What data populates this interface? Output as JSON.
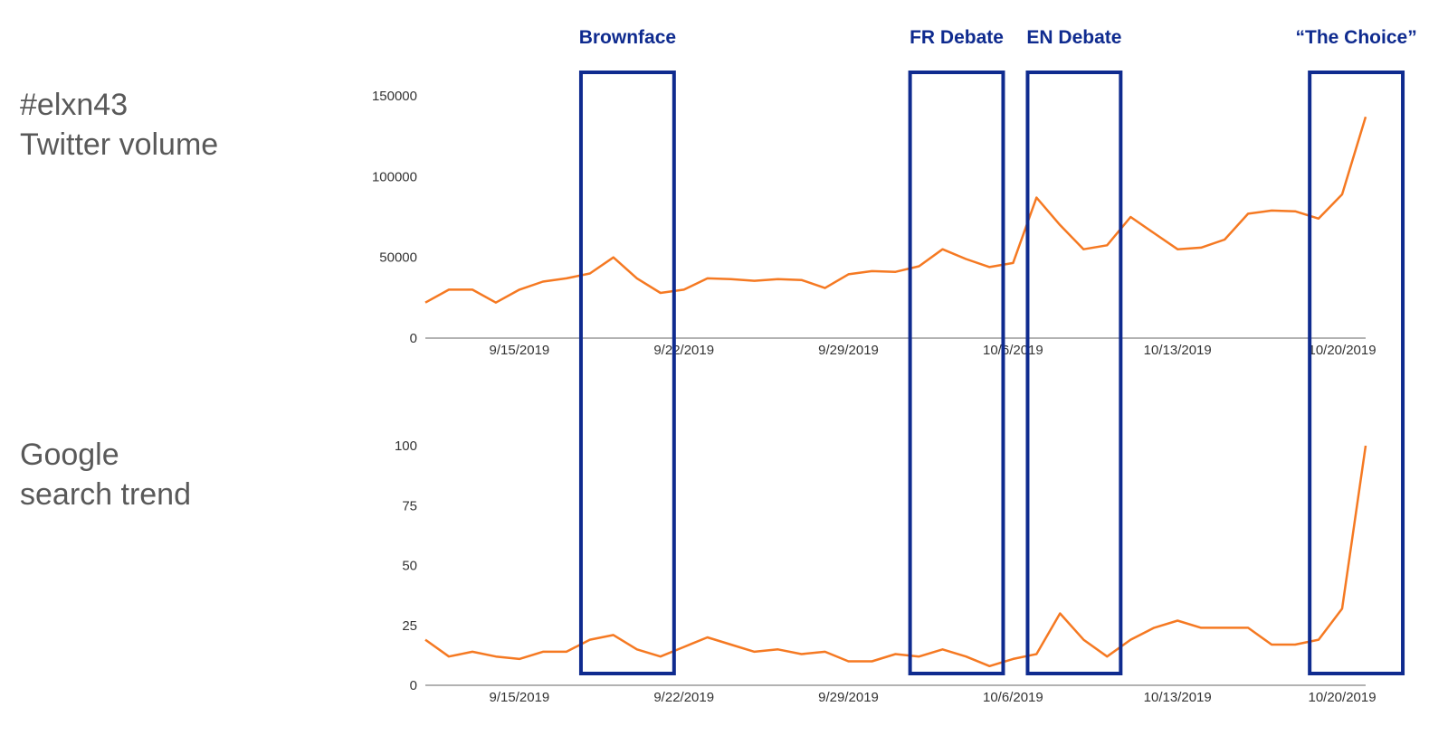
{
  "panels": {
    "twitter": {
      "line1": "#elxn43",
      "line2": "Twitter volume"
    },
    "google": {
      "line1": "Google",
      "line2": "search trend"
    }
  },
  "colors": {
    "line": "#f57922",
    "event_box": "#0f2b8f",
    "event_text": "#0f2b8f",
    "axis": "#999999"
  },
  "events": [
    {
      "label": "Brownface",
      "start": "2019-09-18",
      "end": "2019-09-21"
    },
    {
      "label": "FR Debate",
      "start": "2019-10-02",
      "end": "2019-10-05"
    },
    {
      "label": "EN Debate",
      "start": "2019-10-07",
      "end": "2019-10-10"
    },
    {
      "label": "“The Choice”",
      "start": "2019-10-19",
      "end": "2019-10-22"
    }
  ],
  "chart_data": [
    {
      "type": "line",
      "x_ticks": [
        "9/15/2019",
        "9/22/2019",
        "9/29/2019",
        "10/6/2019",
        "10/13/2019",
        "10/20/2019"
      ],
      "ylim": [
        0,
        150000
      ],
      "y_ticks": [
        "0",
        "50000",
        "100000",
        "150000"
      ],
      "grid": false,
      "series": [
        {
          "x": [
            "2019-09-11",
            "2019-09-12",
            "2019-09-13",
            "2019-09-14",
            "2019-09-15",
            "2019-09-16",
            "2019-09-17",
            "2019-09-18",
            "2019-09-19",
            "2019-09-20",
            "2019-09-21",
            "2019-09-22",
            "2019-09-23",
            "2019-09-24",
            "2019-09-25",
            "2019-09-26",
            "2019-09-27",
            "2019-09-28",
            "2019-09-29",
            "2019-09-30",
            "2019-10-01",
            "2019-10-02",
            "2019-10-03",
            "2019-10-04",
            "2019-10-05",
            "2019-10-06",
            "2019-10-07",
            "2019-10-08",
            "2019-10-09",
            "2019-10-10",
            "2019-10-11",
            "2019-10-12",
            "2019-10-13",
            "2019-10-14",
            "2019-10-15",
            "2019-10-16",
            "2019-10-17",
            "2019-10-18",
            "2019-10-19",
            "2019-10-20",
            "2019-10-21"
          ],
          "values": [
            22000,
            30000,
            30000,
            22000,
            30000,
            35000,
            37000,
            40000,
            50000,
            37000,
            28000,
            30000,
            37000,
            36500,
            35500,
            36500,
            36000,
            31000,
            39500,
            41500,
            41000,
            44500,
            55000,
            49000,
            44000,
            46500,
            87000,
            70000,
            55000,
            57500,
            75000,
            65000,
            55000,
            56000,
            61000,
            77000,
            79000,
            78500,
            74000,
            89000,
            137000
          ]
        }
      ]
    },
    {
      "type": "line",
      "x_ticks": [
        "9/15/2019",
        "9/22/2019",
        "9/29/2019",
        "10/6/2019",
        "10/13/2019",
        "10/20/2019"
      ],
      "ylim": [
        0,
        100
      ],
      "y_ticks": [
        "0",
        "25",
        "50",
        "75",
        "100"
      ],
      "grid": false,
      "series": [
        {
          "x": [
            "2019-09-11",
            "2019-09-12",
            "2019-09-13",
            "2019-09-14",
            "2019-09-15",
            "2019-09-16",
            "2019-09-17",
            "2019-09-18",
            "2019-09-19",
            "2019-09-20",
            "2019-09-21",
            "2019-09-22",
            "2019-09-23",
            "2019-09-24",
            "2019-09-25",
            "2019-09-26",
            "2019-09-27",
            "2019-09-28",
            "2019-09-29",
            "2019-09-30",
            "2019-10-01",
            "2019-10-02",
            "2019-10-03",
            "2019-10-04",
            "2019-10-05",
            "2019-10-06",
            "2019-10-07",
            "2019-10-08",
            "2019-10-09",
            "2019-10-10",
            "2019-10-11",
            "2019-10-12",
            "2019-10-13",
            "2019-10-14",
            "2019-10-15",
            "2019-10-16",
            "2019-10-17",
            "2019-10-18",
            "2019-10-19",
            "2019-10-20",
            "2019-10-21"
          ],
          "values": [
            19,
            12,
            14,
            12,
            11,
            14,
            14,
            19,
            21,
            15,
            12,
            16,
            20,
            17,
            14,
            15,
            13,
            14,
            10,
            10,
            13,
            12,
            15,
            12,
            8,
            11,
            13,
            30,
            19,
            12,
            19,
            24,
            27,
            24,
            24,
            24,
            17,
            17,
            19,
            32,
            100
          ]
        }
      ]
    }
  ]
}
